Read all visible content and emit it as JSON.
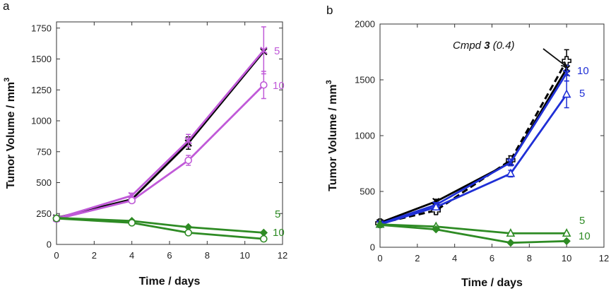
{
  "chart_data": [
    {
      "panel_label": "a",
      "type": "line",
      "xlabel": "Time / days",
      "ylabel_base": "Tumor Volume / mm",
      "ylabel_sup": "3",
      "xlim": [
        0,
        12
      ],
      "ylim": [
        0,
        1800
      ],
      "xticks": [
        0,
        2,
        4,
        6,
        8,
        10,
        12
      ],
      "yticks": [
        0,
        250,
        500,
        750,
        1000,
        1250,
        1500,
        1750
      ],
      "series": [
        {
          "name": "control",
          "color": "#000000",
          "marker": "x",
          "dashed": false,
          "label": "",
          "x": [
            0,
            4,
            7,
            11
          ],
          "y": [
            215,
            365,
            820,
            1560
          ],
          "err": [
            0,
            20,
            50,
            0
          ]
        },
        {
          "name": "purple-5",
          "color": "#c05ad8",
          "marker": "x",
          "dashed": false,
          "label": "5",
          "x": [
            0,
            4,
            7,
            11
          ],
          "y": [
            210,
            395,
            840,
            1570
          ],
          "err": [
            10,
            20,
            50,
            190
          ]
        },
        {
          "name": "purple-10",
          "color": "#c05ad8",
          "marker": "o",
          "dashed": false,
          "label": "10",
          "x": [
            0,
            4,
            7,
            11
          ],
          "y": [
            205,
            355,
            680,
            1290
          ],
          "err": [
            10,
            20,
            40,
            110
          ]
        },
        {
          "name": "green-5",
          "color": "#2e8b24",
          "marker": "d",
          "dashed": false,
          "label": "5",
          "x": [
            0,
            4,
            7,
            11
          ],
          "y": [
            215,
            190,
            140,
            95
          ],
          "err": [
            5,
            10,
            5,
            5
          ]
        },
        {
          "name": "green-10",
          "color": "#2e8b24",
          "marker": "o",
          "dashed": false,
          "label": "10",
          "x": [
            0,
            4,
            7,
            11
          ],
          "y": [
            210,
            175,
            95,
            45
          ],
          "err": [
            5,
            10,
            5,
            5
          ]
        }
      ]
    },
    {
      "panel_label": "b",
      "type": "line",
      "xlabel": "Time / days",
      "ylabel_base": "Tumor Volume / mm",
      "ylabel_sup": "3",
      "xlim": [
        0,
        12
      ],
      "ylim": [
        0,
        2000
      ],
      "xticks": [
        0,
        2,
        4,
        6,
        8,
        10,
        12
      ],
      "yticks": [
        0,
        500,
        1000,
        1500,
        2000
      ],
      "annotation": {
        "prefix": "Cmpd ",
        "bold": "3",
        "suffix": " (0.4)"
      },
      "series": [
        {
          "name": "control",
          "color": "#000000",
          "marker": "x",
          "dashed": false,
          "label": "",
          "x": [
            0,
            3,
            7,
            10
          ],
          "y": [
            220,
            410,
            760,
            1600
          ],
          "err": [
            0,
            20,
            30,
            60
          ]
        },
        {
          "name": "cmpd3",
          "color": "#000000",
          "marker": "plus",
          "dashed": true,
          "label": "",
          "x": [
            0,
            3,
            7,
            10
          ],
          "y": [
            215,
            330,
            780,
            1670
          ],
          "err": [
            0,
            30,
            40,
            100
          ]
        },
        {
          "name": "blue-10",
          "color": "#1f2fd6",
          "marker": "x",
          "dashed": false,
          "label": "10",
          "x": [
            0,
            3,
            7,
            10
          ],
          "y": [
            210,
            380,
            760,
            1560
          ],
          "err": [
            10,
            20,
            30,
            70
          ]
        },
        {
          "name": "blue-5",
          "color": "#1f2fd6",
          "marker": "tri",
          "dashed": false,
          "label": "5",
          "x": [
            0,
            3,
            7,
            10
          ],
          "y": [
            205,
            360,
            660,
            1370
          ],
          "err": [
            10,
            20,
            30,
            120
          ]
        },
        {
          "name": "green-5",
          "color": "#2e8b24",
          "marker": "tri",
          "dashed": false,
          "label": "5",
          "x": [
            0,
            3,
            7,
            10
          ],
          "y": [
            205,
            185,
            125,
            125
          ],
          "err": [
            5,
            10,
            5,
            5
          ]
        },
        {
          "name": "green-10",
          "color": "#2e8b24",
          "marker": "d",
          "dashed": false,
          "label": "10",
          "x": [
            0,
            3,
            7,
            10
          ],
          "y": [
            200,
            160,
            40,
            55
          ],
          "err": [
            5,
            10,
            5,
            5
          ]
        }
      ]
    }
  ]
}
